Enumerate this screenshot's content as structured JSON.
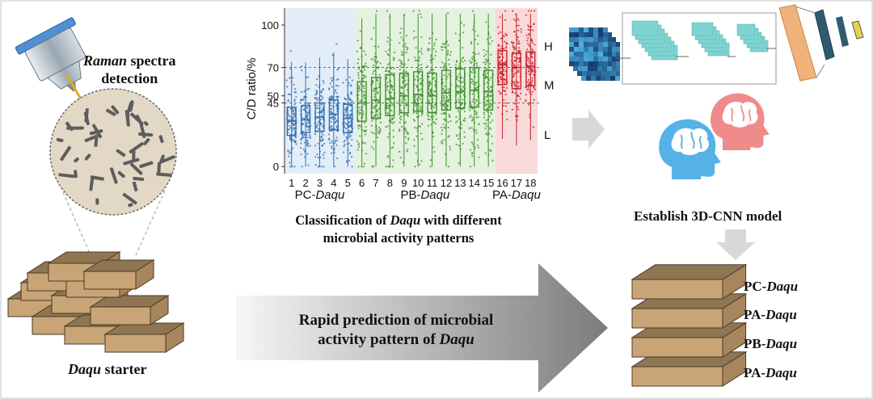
{
  "raman": {
    "italic": "Raman",
    "rest": " spectra",
    "line2": "detection"
  },
  "daqu_starter": {
    "italic": "Daqu",
    "rest": " starter"
  },
  "chart_data": {
    "type": "box",
    "ylabel": "C/D ratio/%",
    "yticks": [
      0,
      45,
      50,
      70,
      100
    ],
    "ylim": [
      -5,
      112
    ],
    "categories": [
      "1",
      "2",
      "3",
      "4",
      "5",
      "6",
      "7",
      "8",
      "9",
      "10",
      "11",
      "12",
      "13",
      "14",
      "15",
      "16",
      "17",
      "18"
    ],
    "groups": [
      {
        "name": "PC-Daqu",
        "prefix": "PC-",
        "italic": "Daqu",
        "from": 1,
        "to": 5,
        "color": "#2f6fb0",
        "bg": "#e3edf8"
      },
      {
        "name": "PB-Daqu",
        "prefix": "PB-",
        "italic": "Daqu",
        "from": 6,
        "to": 15,
        "color": "#3f8f2c",
        "bg": "#e4f2df"
      },
      {
        "name": "PA-Daqu",
        "prefix": "PA-",
        "italic": "Daqu",
        "from": 16,
        "to": 18,
        "color": "#c8202a",
        "bg": "#f8dada"
      }
    ],
    "medians": [
      32,
      33,
      35,
      37,
      34,
      45,
      47,
      48,
      50,
      51,
      50,
      52,
      53,
      54,
      53,
      72,
      70,
      71
    ],
    "q1": [
      22,
      24,
      25,
      26,
      24,
      32,
      34,
      36,
      38,
      39,
      38,
      40,
      41,
      42,
      40,
      58,
      55,
      57
    ],
    "q3": [
      42,
      43,
      45,
      47,
      44,
      60,
      63,
      65,
      66,
      67,
      66,
      68,
      69,
      70,
      68,
      82,
      80,
      81
    ],
    "zones": [
      {
        "label": "H",
        "from": 70,
        "to": 100
      },
      {
        "label": "M",
        "from": 45,
        "to": 70
      },
      {
        "label": "L",
        "from": 0,
        "to": 45
      }
    ],
    "reference_lines": [
      45,
      70
    ],
    "caption_line1_pre": "Classification of ",
    "caption_italic": "Daqu",
    "caption_line1_post": " with different",
    "caption_line2": "microbial activity patterns"
  },
  "model_label": "Establish 3D-CNN model",
  "prediction_arrow": {
    "line1": "Rapid prediction of microbial",
    "line2_pre": "activity pattern of ",
    "line2_italic": "Daqu"
  },
  "stack_labels": [
    {
      "prefix": "PC-",
      "italic": "Daqu"
    },
    {
      "prefix": "PA-",
      "italic": "Daqu"
    },
    {
      "prefix": "PB-",
      "italic": "Daqu"
    },
    {
      "prefix": "PA-",
      "italic": "Daqu"
    }
  ],
  "colors": {
    "brick_top": "#8f7653",
    "brick_side": "#c8a477",
    "brick_edge": "#4a3a26",
    "arrow_dark": "#7a7a7a",
    "arrow_light": "#f4f4f4",
    "cnn_layer": "#7fd3d0",
    "head_blue": "#56b2e6",
    "head_red": "#f08b8b"
  },
  "icons": [
    "spectrometer-probe-icon",
    "microscope-view-icon",
    "brain-head-icon",
    "arrow-right-icon",
    "arrow-down-icon"
  ]
}
